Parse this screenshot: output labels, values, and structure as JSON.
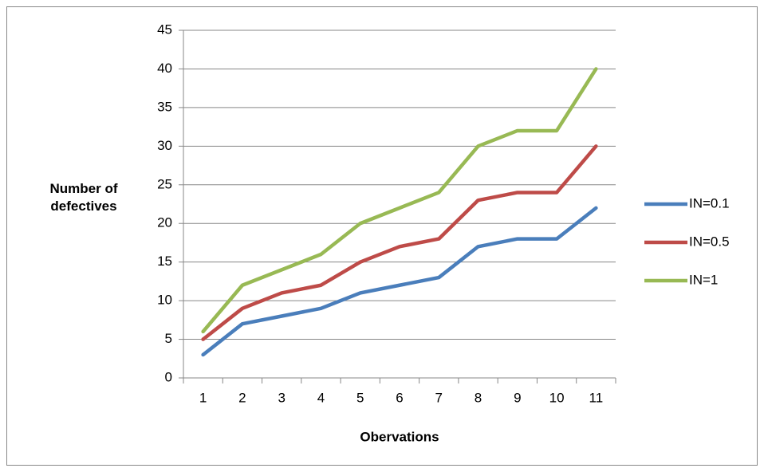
{
  "chart_data": {
    "type": "line",
    "x_label": "Obervations",
    "y_label": "Number of defectives",
    "categories": [
      "1",
      "2",
      "3",
      "4",
      "5",
      "6",
      "7",
      "8",
      "9",
      "10",
      "11"
    ],
    "series": [
      {
        "name": "IN=0.1",
        "color": "#4a7ebb",
        "values": [
          3,
          7,
          8,
          9,
          11,
          12,
          13,
          17,
          18,
          18,
          22
        ]
      },
      {
        "name": "IN=0.5",
        "color": "#be4b48",
        "values": [
          5,
          9,
          11,
          12,
          15,
          17,
          18,
          23,
          24,
          24,
          30
        ]
      },
      {
        "name": "IN=1",
        "color": "#98b954",
        "values": [
          6,
          12,
          14,
          16,
          20,
          22,
          24,
          30,
          32,
          32,
          40
        ]
      }
    ],
    "ylim": [
      0,
      45
    ],
    "yticks": [
      0,
      5,
      10,
      15,
      20,
      25,
      30,
      35,
      40,
      45
    ],
    "grid": true,
    "legend": "right"
  }
}
